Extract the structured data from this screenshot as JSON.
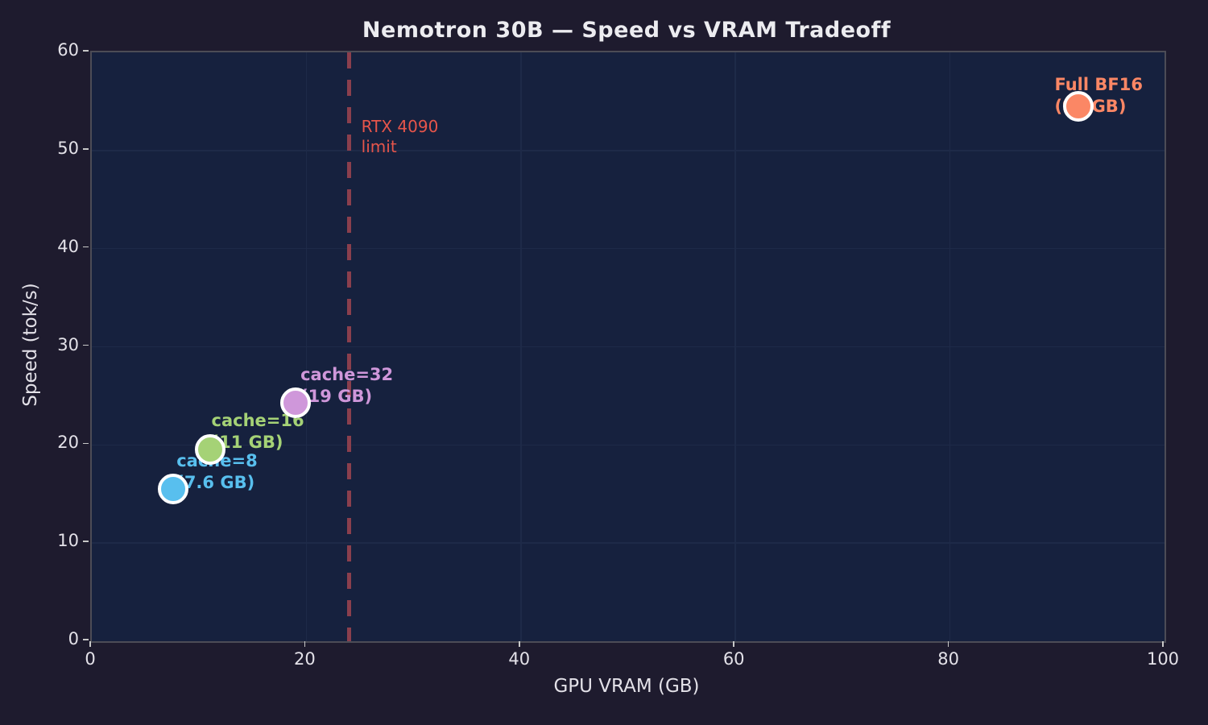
{
  "chart_data": {
    "type": "scatter",
    "title": "Nemotron 30B — Speed vs VRAM Tradeoff",
    "xlabel": "GPU VRAM (GB)",
    "ylabel": "Speed (tok/s)",
    "xlim": [
      0,
      100
    ],
    "ylim": [
      0,
      60
    ],
    "xticks": [
      0,
      20,
      40,
      60,
      80,
      100
    ],
    "yticks": [
      0,
      10,
      20,
      30,
      40,
      50,
      60
    ],
    "grid": true,
    "legend_position": "none",
    "points": [
      {
        "name": "cache-8",
        "label": "cache=8",
        "vram_label": "(7.6 GB)",
        "x": 7.6,
        "y": 15.5,
        "color": "#58bfee",
        "label_offset": [
          4,
          -48
        ]
      },
      {
        "name": "cache-16",
        "label": "cache=16",
        "vram_label": "(11 GB)",
        "x": 11,
        "y": 19.5,
        "color": "#a5d276",
        "label_offset": [
          2,
          -49
        ]
      },
      {
        "name": "cache-32",
        "label": "cache=32",
        "vram_label": "(19 GB)",
        "x": 19,
        "y": 24.3,
        "color": "#cf97da",
        "label_offset": [
          6,
          -48
        ]
      },
      {
        "name": "full-bf16",
        "label": "Full BF16",
        "vram_label": "(92 GB)",
        "x": 92,
        "y": 54.5,
        "color": "#fb8765",
        "label_offset": [
          -30,
          -40
        ]
      }
    ],
    "vline": {
      "x": 24,
      "label_lines": [
        "RTX 4090",
        "limit"
      ],
      "color": "#8b3f4d",
      "label_color": "#e6554b"
    }
  },
  "colors": {
    "figure_bg": "#1e1b2e",
    "plot_bg": "#16213e",
    "gridline": "#1e2a48",
    "spine": "#4c4c56",
    "tick": "#c8c8c8",
    "text": "#e3e1e8"
  }
}
